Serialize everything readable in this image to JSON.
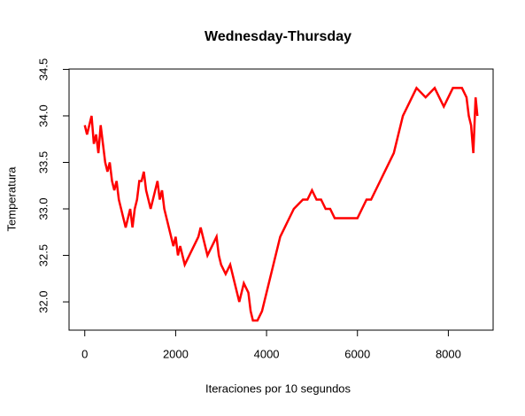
{
  "chart_data": {
    "type": "line",
    "title": "Wednesday-Thursday",
    "x_label": "Iteraciones por 10 segundos",
    "y_label": "Temperatura",
    "x": [
      0,
      50,
      100,
      150,
      200,
      250,
      300,
      350,
      400,
      450,
      500,
      550,
      600,
      650,
      700,
      750,
      800,
      850,
      900,
      950,
      1000,
      1050,
      1100,
      1150,
      1200,
      1250,
      1300,
      1350,
      1400,
      1450,
      1500,
      1550,
      1600,
      1650,
      1700,
      1750,
      1800,
      1850,
      1900,
      1950,
      2000,
      2050,
      2100,
      2150,
      2200,
      2300,
      2400,
      2500,
      2550,
      2600,
      2700,
      2800,
      2900,
      2950,
      3000,
      3100,
      3200,
      3300,
      3400,
      3500,
      3600,
      3650,
      3700,
      3800,
      3900,
      3950,
      4000,
      4100,
      4200,
      4300,
      4400,
      4500,
      4600,
      4700,
      4800,
      4900,
      5000,
      5100,
      5200,
      5300,
      5400,
      5500,
      5600,
      5800,
      6000,
      6100,
      6200,
      6300,
      6400,
      6500,
      6600,
      6700,
      6800,
      6900,
      7000,
      7100,
      7200,
      7300,
      7500,
      7700,
      7800,
      7900,
      8000,
      8100,
      8200,
      8300,
      8400,
      8450,
      8500,
      8550,
      8600,
      8640
    ],
    "series": [
      {
        "name": "Temperatura",
        "color": "#ff0000",
        "values": [
          33.9,
          33.8,
          33.9,
          34.0,
          33.7,
          33.8,
          33.6,
          33.9,
          33.7,
          33.5,
          33.4,
          33.5,
          33.3,
          33.2,
          33.3,
          33.1,
          33.0,
          32.9,
          32.8,
          32.9,
          33.0,
          32.8,
          33.0,
          33.1,
          33.3,
          33.3,
          33.4,
          33.2,
          33.1,
          33.0,
          33.1,
          33.2,
          33.3,
          33.1,
          33.2,
          33.0,
          32.9,
          32.8,
          32.7,
          32.6,
          32.7,
          32.5,
          32.6,
          32.5,
          32.4,
          32.5,
          32.6,
          32.7,
          32.8,
          32.7,
          32.5,
          32.6,
          32.7,
          32.5,
          32.4,
          32.3,
          32.4,
          32.2,
          32.0,
          32.2,
          32.1,
          31.9,
          31.8,
          31.8,
          31.9,
          32.0,
          32.1,
          32.3,
          32.5,
          32.7,
          32.8,
          32.9,
          33.0,
          33.05,
          33.1,
          33.1,
          33.2,
          33.1,
          33.1,
          33.0,
          33.0,
          32.9,
          32.9,
          32.9,
          32.9,
          33.0,
          33.1,
          33.1,
          33.2,
          33.3,
          33.4,
          33.5,
          33.6,
          33.8,
          34.0,
          34.1,
          34.2,
          34.3,
          34.2,
          34.3,
          34.2,
          34.1,
          34.2,
          34.3,
          34.3,
          34.3,
          34.2,
          34.0,
          33.9,
          33.6,
          34.2,
          34.0
        ]
      }
    ],
    "xlim": [
      -345.6,
      8985.6
    ],
    "ylim": [
      31.696,
      34.504
    ],
    "xticks": [
      0,
      2000,
      4000,
      6000,
      8000
    ],
    "yticks": [
      {
        "value": 32,
        "label": "32.0"
      },
      32.5,
      {
        "value": 33,
        "label": "33.0"
      },
      33.5,
      {
        "value": 34,
        "label": "34.0"
      },
      34.5
    ]
  }
}
